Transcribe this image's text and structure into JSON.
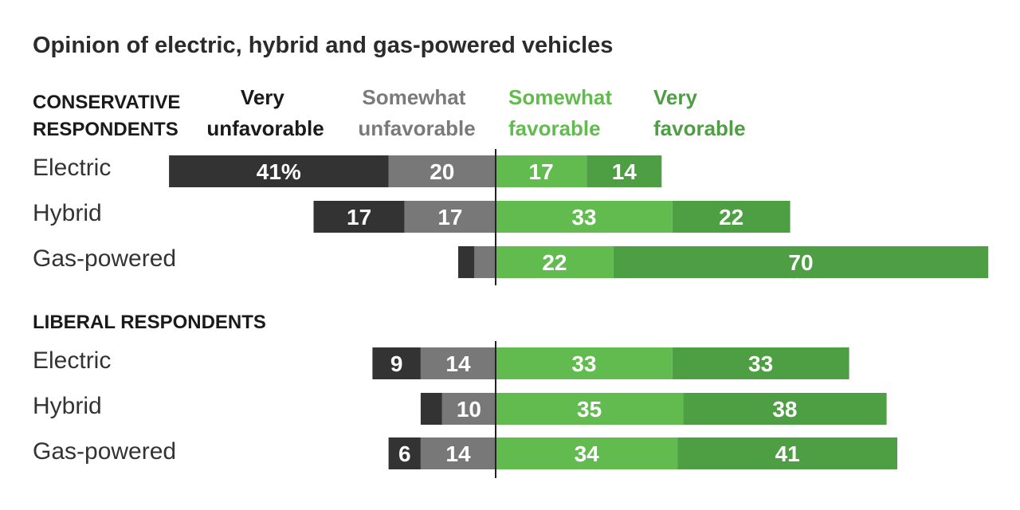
{
  "title": "Opinion of electric, hybrid and gas-powered vehicles",
  "colors": {
    "very_unfavorable": "#333333",
    "somewhat_unfavorable": "#787878",
    "somewhat_favorable": "#62bb4f",
    "very_favorable": "#4e9e44",
    "somewhat_unfavorable_text": "#7a7a7a",
    "somewhat_favorable_text": "#62bb4f",
    "very_favorable_text": "#4e9e44",
    "very_unfavorable_text": "#1a1a1a"
  },
  "chart_data": {
    "type": "bar",
    "subtype": "diverging-stacked-horizontal",
    "orientation": "horizontal",
    "unit": "%",
    "series": [
      {
        "key": "very_unfavorable",
        "name_lines": [
          "Very",
          "unfavorable"
        ],
        "side": "negative"
      },
      {
        "key": "somewhat_unfavorable",
        "name_lines": [
          "Somewhat",
          "unfavorable"
        ],
        "side": "negative"
      },
      {
        "key": "somewhat_favorable",
        "name_lines": [
          "Somewhat",
          "favorable"
        ],
        "side": "positive"
      },
      {
        "key": "very_favorable",
        "name_lines": [
          "Very",
          "favorable"
        ],
        "side": "positive"
      }
    ],
    "groups": [
      {
        "label_lines": [
          "CONSERVATIVE",
          "RESPONDENTS"
        ],
        "rows": [
          {
            "label": "Electric",
            "values": {
              "very_unfavorable": 41,
              "somewhat_unfavorable": 20,
              "somewhat_favorable": 17,
              "very_favorable": 14
            },
            "value_labels": {
              "very_unfavorable": "41%",
              "somewhat_unfavorable": "20",
              "somewhat_favorable": "17",
              "very_favorable": "14"
            }
          },
          {
            "label": "Hybrid",
            "values": {
              "very_unfavorable": 17,
              "somewhat_unfavorable": 17,
              "somewhat_favorable": 33,
              "very_favorable": 22
            },
            "value_labels": {
              "very_unfavorable": "17",
              "somewhat_unfavorable": "17",
              "somewhat_favorable": "33",
              "very_favorable": "22"
            }
          },
          {
            "label": "Gas-powered",
            "values": {
              "very_unfavorable": 3,
              "somewhat_unfavorable": 4,
              "somewhat_favorable": 22,
              "very_favorable": 70
            },
            "value_labels": {
              "very_unfavorable": "",
              "somewhat_unfavorable": "",
              "somewhat_favorable": "22",
              "very_favorable": "70"
            }
          }
        ]
      },
      {
        "label_lines": [
          "LIBERAL RESPONDENTS"
        ],
        "rows": [
          {
            "label": "Electric",
            "values": {
              "very_unfavorable": 9,
              "somewhat_unfavorable": 14,
              "somewhat_favorable": 33,
              "very_favorable": 33
            },
            "value_labels": {
              "very_unfavorable": "9",
              "somewhat_unfavorable": "14",
              "somewhat_favorable": "33",
              "very_favorable": "33"
            }
          },
          {
            "label": "Hybrid",
            "values": {
              "very_unfavorable": 4,
              "somewhat_unfavorable": 10,
              "somewhat_favorable": 35,
              "very_favorable": 38
            },
            "value_labels": {
              "very_unfavorable": "",
              "somewhat_unfavorable": "10",
              "somewhat_favorable": "35",
              "very_favorable": "38"
            }
          },
          {
            "label": "Gas-powered",
            "values": {
              "very_unfavorable": 6,
              "somewhat_unfavorable": 14,
              "somewhat_favorable": 34,
              "very_favorable": 41
            },
            "value_labels": {
              "very_unfavorable": "6",
              "somewhat_unfavorable": "14",
              "somewhat_favorable": "34",
              "very_favorable": "41"
            }
          }
        ]
      }
    ]
  }
}
